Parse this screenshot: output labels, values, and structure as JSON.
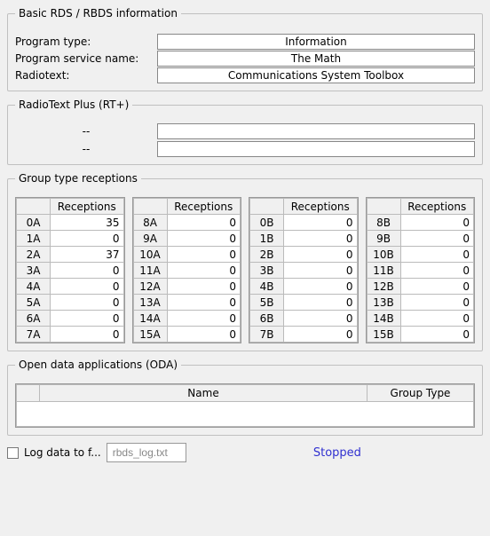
{
  "basic": {
    "legend": "Basic RDS / RBDS information",
    "fields": {
      "pty_label": "Program type:",
      "pty_value": "Information",
      "psn_label": "Program service name:",
      "psn_value": "The Math",
      "rt_label": "Radiotext:",
      "rt_value": "Communications System Toolbox"
    }
  },
  "rtplus": {
    "legend": "RadioText Plus (RT+)",
    "rows": [
      {
        "label": "--",
        "value": ""
      },
      {
        "label": "--",
        "value": ""
      }
    ]
  },
  "groups": {
    "legend": "Group type receptions",
    "col_header": "Receptions",
    "tables": [
      [
        {
          "g": "0A",
          "r": 35
        },
        {
          "g": "1A",
          "r": 0
        },
        {
          "g": "2A",
          "r": 37
        },
        {
          "g": "3A",
          "r": 0
        },
        {
          "g": "4A",
          "r": 0
        },
        {
          "g": "5A",
          "r": 0
        },
        {
          "g": "6A",
          "r": 0
        },
        {
          "g": "7A",
          "r": 0
        }
      ],
      [
        {
          "g": "8A",
          "r": 0
        },
        {
          "g": "9A",
          "r": 0
        },
        {
          "g": "10A",
          "r": 0
        },
        {
          "g": "11A",
          "r": 0
        },
        {
          "g": "12A",
          "r": 0
        },
        {
          "g": "13A",
          "r": 0
        },
        {
          "g": "14A",
          "r": 0
        },
        {
          "g": "15A",
          "r": 0
        }
      ],
      [
        {
          "g": "0B",
          "r": 0
        },
        {
          "g": "1B",
          "r": 0
        },
        {
          "g": "2B",
          "r": 0
        },
        {
          "g": "3B",
          "r": 0
        },
        {
          "g": "4B",
          "r": 0
        },
        {
          "g": "5B",
          "r": 0
        },
        {
          "g": "6B",
          "r": 0
        },
        {
          "g": "7B",
          "r": 0
        }
      ],
      [
        {
          "g": "8B",
          "r": 0
        },
        {
          "g": "9B",
          "r": 0
        },
        {
          "g": "10B",
          "r": 0
        },
        {
          "g": "11B",
          "r": 0
        },
        {
          "g": "12B",
          "r": 0
        },
        {
          "g": "13B",
          "r": 0
        },
        {
          "g": "14B",
          "r": 0
        },
        {
          "g": "15B",
          "r": 0
        }
      ]
    ]
  },
  "oda": {
    "legend": "Open data applications (ODA)",
    "col_name": "Name",
    "col_grouptype": "Group Type"
  },
  "bottom": {
    "log_label": "Log data to f...",
    "log_checked": false,
    "log_file": "rbds_log.txt",
    "status": "Stopped"
  }
}
